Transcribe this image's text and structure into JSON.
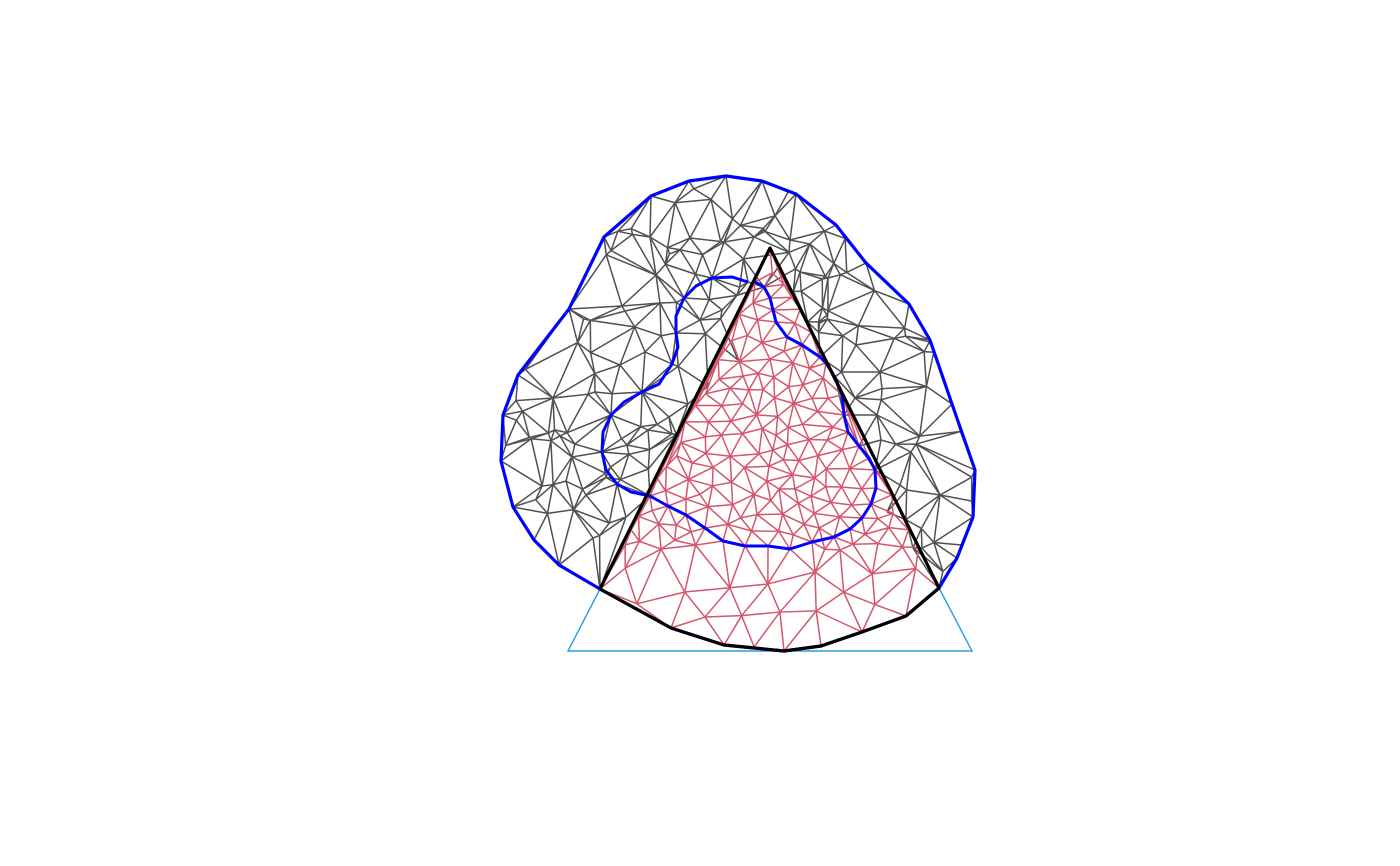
{
  "figure": {
    "type": "mesh-diagram",
    "colors": {
      "background": "#ffffff",
      "outer_mesh": "#505050",
      "inner_mesh": "#d4566b",
      "outer_boundary": "#0000ff",
      "inner_boundary": "#0000ff",
      "clip_polygon": "#000000",
      "triangle_outline": "#2a9be0"
    },
    "layers": [
      {
        "name": "outer-mesh",
        "description_color": "dark gray"
      },
      {
        "name": "inner-mesh",
        "description_color": "red"
      },
      {
        "name": "outer-boundary",
        "description_color": "blue"
      },
      {
        "name": "inner-boundary",
        "description_color": "blue"
      },
      {
        "name": "clip-polygon",
        "description_color": "black"
      },
      {
        "name": "triangle-outline",
        "description_color": "light blue"
      }
    ]
  }
}
